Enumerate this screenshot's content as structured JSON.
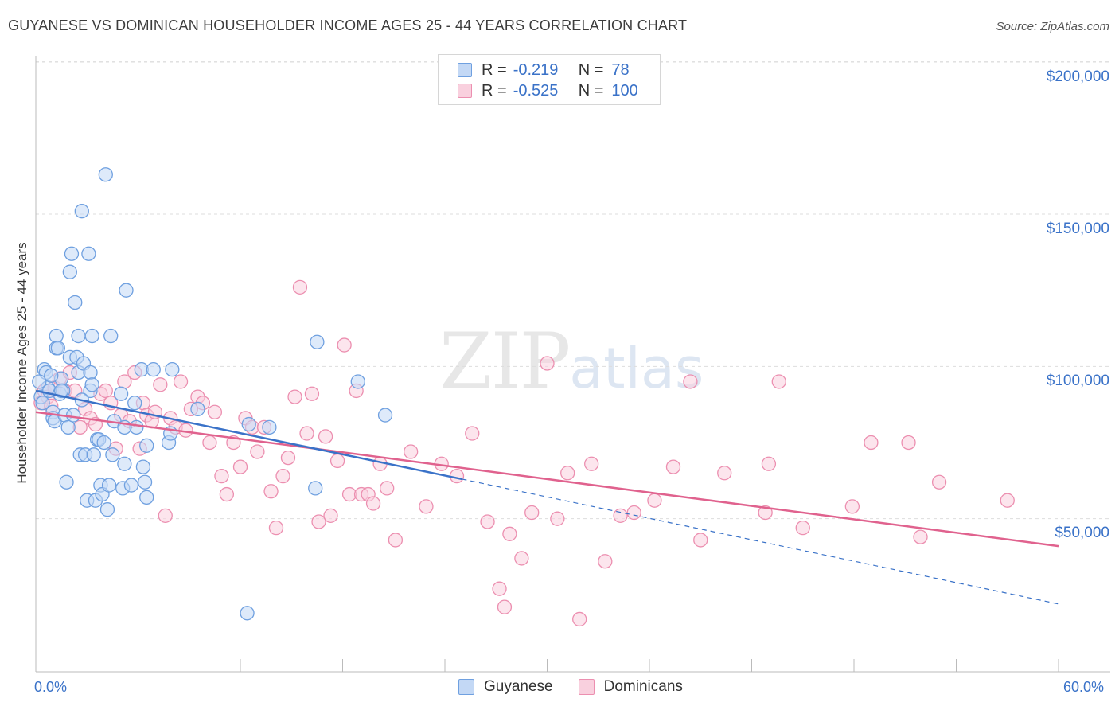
{
  "title": "GUYANESE VS DOMINICAN HOUSEHOLDER INCOME AGES 25 - 44 YEARS CORRELATION CHART",
  "source": "Source: ZipAtlas.com",
  "watermark": {
    "zip": "ZIP",
    "atlas": "atlas"
  },
  "legend": {
    "rows": [
      {
        "r_label": "R =",
        "r_value": "-0.219",
        "n_label": "N =",
        "n_value": "78"
      },
      {
        "r_label": "R =",
        "r_value": "-0.525",
        "n_label": "N =",
        "n_value": "100"
      }
    ]
  },
  "colors": {
    "guyanese": "#6fa0e0",
    "guyanese_fill": "#c3d8f5",
    "guyanese_line": "#3a72c8",
    "dominicans": "#ec8fb0",
    "dominicans_fill": "#f9d0de",
    "dominicans_line": "#e0628e",
    "axis_text": "#3a72c8",
    "grid": "#dddddd"
  },
  "chart_data": {
    "type": "scatter",
    "title": "GUYANESE VS DOMINICAN HOUSEHOLDER INCOME AGES 25 - 44 YEARS CORRELATION CHART",
    "xlabel": "",
    "ylabel": "Householder Income Ages 25 - 44 years",
    "xlim": [
      0,
      60
    ],
    "ylim": [
      0,
      210000
    ],
    "x_tick_labels": [
      "0.0%",
      "60.0%"
    ],
    "y_ticks": [
      50000,
      100000,
      150000,
      200000
    ],
    "y_tick_labels": [
      "$50,000",
      "$100,000",
      "$150,000",
      "$200,000"
    ],
    "grid": true,
    "legend_position": "bottom-center",
    "series": [
      {
        "name": "Guyanese",
        "points": [
          [
            0.3,
            90000
          ],
          [
            0.4,
            88000
          ],
          [
            0.5,
            99000
          ],
          [
            0.6,
            98000
          ],
          [
            0.7,
            93000
          ],
          [
            0.8,
            92000
          ],
          [
            1.0,
            85000
          ],
          [
            1.0,
            83000
          ],
          [
            1.1,
            82000
          ],
          [
            1.2,
            110000
          ],
          [
            1.2,
            106000
          ],
          [
            1.3,
            106000
          ],
          [
            1.4,
            91000
          ],
          [
            1.5,
            96000
          ],
          [
            1.6,
            92000
          ],
          [
            1.7,
            84000
          ],
          [
            1.8,
            62000
          ],
          [
            1.9,
            80000
          ],
          [
            2.0,
            103000
          ],
          [
            2.0,
            131000
          ],
          [
            2.1,
            137000
          ],
          [
            2.2,
            84000
          ],
          [
            2.3,
            121000
          ],
          [
            2.4,
            103000
          ],
          [
            2.5,
            110000
          ],
          [
            2.5,
            98000
          ],
          [
            2.6,
            71000
          ],
          [
            2.7,
            151000
          ],
          [
            2.8,
            101000
          ],
          [
            2.9,
            71000
          ],
          [
            3.0,
            56000
          ],
          [
            3.1,
            137000
          ],
          [
            3.2,
            98000
          ],
          [
            3.2,
            92000
          ],
          [
            3.3,
            110000
          ],
          [
            3.4,
            71000
          ],
          [
            3.5,
            56000
          ],
          [
            3.6,
            76000
          ],
          [
            3.7,
            76000
          ],
          [
            3.8,
            61000
          ],
          [
            3.9,
            58000
          ],
          [
            4.0,
            75000
          ],
          [
            4.1,
            163000
          ],
          [
            4.2,
            53000
          ],
          [
            4.3,
            61000
          ],
          [
            4.4,
            110000
          ],
          [
            4.5,
            71000
          ],
          [
            4.6,
            82000
          ],
          [
            5.0,
            91000
          ],
          [
            5.1,
            60000
          ],
          [
            5.2,
            68000
          ],
          [
            5.3,
            125000
          ],
          [
            5.6,
            61000
          ],
          [
            5.8,
            88000
          ],
          [
            5.9,
            80000
          ],
          [
            6.2,
            99000
          ],
          [
            6.3,
            67000
          ],
          [
            6.4,
            62000
          ],
          [
            6.5,
            57000
          ],
          [
            6.9,
            99000
          ],
          [
            7.8,
            75000
          ],
          [
            7.9,
            78000
          ],
          [
            8.0,
            99000
          ],
          [
            9.5,
            86000
          ],
          [
            12.4,
            19000
          ],
          [
            12.5,
            81000
          ],
          [
            13.7,
            80000
          ],
          [
            16.4,
            60000
          ],
          [
            16.5,
            108000
          ],
          [
            18.9,
            95000
          ],
          [
            20.5,
            84000
          ],
          [
            0.2,
            95000
          ],
          [
            0.9,
            97000
          ],
          [
            1.5,
            92000
          ],
          [
            2.7,
            89000
          ],
          [
            3.3,
            94000
          ],
          [
            5.2,
            80000
          ],
          [
            6.5,
            74000
          ]
        ]
      },
      {
        "name": "Dominicans",
        "points": [
          [
            0.3,
            88000
          ],
          [
            0.5,
            92000
          ],
          [
            0.7,
            90000
          ],
          [
            0.9,
            87000
          ],
          [
            1.1,
            93000
          ],
          [
            1.4,
            96000
          ],
          [
            1.7,
            92000
          ],
          [
            2.0,
            98000
          ],
          [
            2.3,
            92000
          ],
          [
            2.6,
            80000
          ],
          [
            2.9,
            86000
          ],
          [
            3.2,
            83000
          ],
          [
            3.5,
            81000
          ],
          [
            3.8,
            91000
          ],
          [
            4.1,
            92000
          ],
          [
            4.4,
            88000
          ],
          [
            4.7,
            73000
          ],
          [
            5.0,
            84000
          ],
          [
            5.2,
            95000
          ],
          [
            5.5,
            82000
          ],
          [
            5.8,
            98000
          ],
          [
            6.1,
            73000
          ],
          [
            6.3,
            88000
          ],
          [
            6.5,
            84000
          ],
          [
            6.8,
            82000
          ],
          [
            7.0,
            85000
          ],
          [
            7.3,
            94000
          ],
          [
            7.6,
            51000
          ],
          [
            7.9,
            83000
          ],
          [
            8.2,
            80000
          ],
          [
            8.5,
            95000
          ],
          [
            8.8,
            79000
          ],
          [
            9.1,
            86000
          ],
          [
            9.5,
            90000
          ],
          [
            9.8,
            88000
          ],
          [
            10.2,
            75000
          ],
          [
            10.5,
            85000
          ],
          [
            10.9,
            64000
          ],
          [
            11.2,
            58000
          ],
          [
            11.6,
            75000
          ],
          [
            12.0,
            67000
          ],
          [
            12.3,
            83000
          ],
          [
            12.7,
            80000
          ],
          [
            13.0,
            72000
          ],
          [
            13.4,
            80000
          ],
          [
            13.8,
            59000
          ],
          [
            14.1,
            47000
          ],
          [
            14.5,
            64000
          ],
          [
            14.8,
            70000
          ],
          [
            15.2,
            90000
          ],
          [
            15.5,
            126000
          ],
          [
            15.9,
            78000
          ],
          [
            16.2,
            91000
          ],
          [
            16.6,
            49000
          ],
          [
            17.0,
            77000
          ],
          [
            17.3,
            51000
          ],
          [
            17.7,
            69000
          ],
          [
            18.1,
            107000
          ],
          [
            18.4,
            58000
          ],
          [
            18.8,
            92000
          ],
          [
            19.1,
            58000
          ],
          [
            19.5,
            58000
          ],
          [
            19.8,
            55000
          ],
          [
            20.2,
            68000
          ],
          [
            20.6,
            60000
          ],
          [
            21.1,
            43000
          ],
          [
            22.0,
            72000
          ],
          [
            22.9,
            54000
          ],
          [
            23.8,
            68000
          ],
          [
            24.7,
            64000
          ],
          [
            25.6,
            78000
          ],
          [
            26.5,
            49000
          ],
          [
            27.2,
            27000
          ],
          [
            27.8,
            45000
          ],
          [
            28.5,
            37000
          ],
          [
            29.1,
            52000
          ],
          [
            30.0,
            101000
          ],
          [
            30.6,
            50000
          ],
          [
            31.2,
            65000
          ],
          [
            31.9,
            17000
          ],
          [
            32.6,
            68000
          ],
          [
            33.4,
            36000
          ],
          [
            34.3,
            51000
          ],
          [
            35.1,
            52000
          ],
          [
            36.3,
            56000
          ],
          [
            37.4,
            67000
          ],
          [
            38.4,
            95000
          ],
          [
            39.0,
            43000
          ],
          [
            40.4,
            65000
          ],
          [
            42.8,
            52000
          ],
          [
            43.0,
            68000
          ],
          [
            43.6,
            95000
          ],
          [
            45.0,
            47000
          ],
          [
            47.9,
            54000
          ],
          [
            49.0,
            75000
          ],
          [
            51.2,
            75000
          ],
          [
            51.9,
            44000
          ],
          [
            53.0,
            62000
          ],
          [
            57.0,
            56000
          ],
          [
            27.5,
            21000
          ]
        ]
      }
    ],
    "trendlines": [
      {
        "series": "Guyanese",
        "x": [
          0,
          25
        ],
        "y": [
          92000,
          63000
        ],
        "dashed_to": [
          60,
          22000
        ]
      },
      {
        "series": "Dominicans",
        "x": [
          0,
          60
        ],
        "y": [
          85000,
          41000
        ]
      }
    ]
  }
}
